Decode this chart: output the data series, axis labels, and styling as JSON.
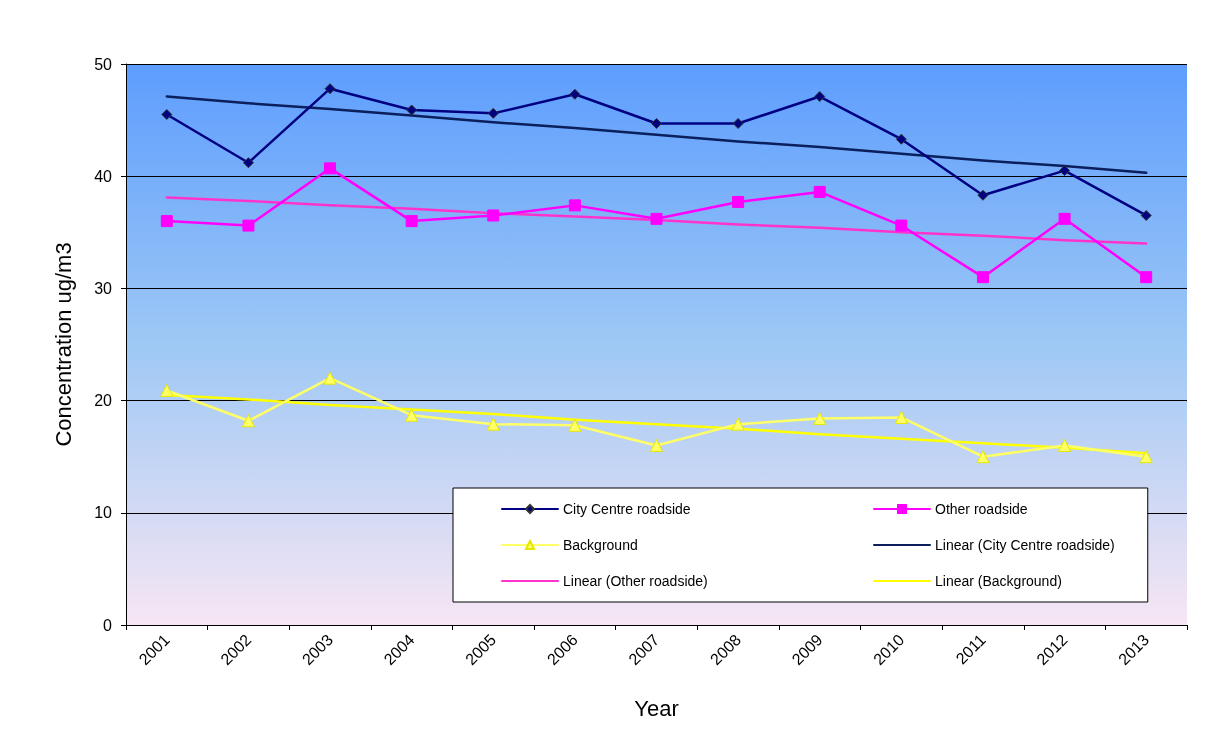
{
  "chart_data": {
    "type": "line",
    "xlabel": "Year",
    "ylabel": "Concentration ug/m3",
    "categories": [
      "2001",
      "2002",
      "2003",
      "2004",
      "2005",
      "2006",
      "2007",
      "2008",
      "2009",
      "2010",
      "2011",
      "2012",
      "2013"
    ],
    "ylim": [
      0,
      50
    ],
    "yticks": [
      0,
      10,
      20,
      30,
      40,
      50
    ],
    "grid": "y",
    "legend": "bottom right",
    "series": [
      {
        "name": "City Centre roadside",
        "color": "#000080",
        "marker": "diamond",
        "values": [
          45.5,
          41.2,
          47.8,
          45.9,
          45.6,
          47.3,
          44.7,
          44.7,
          47.1,
          43.3,
          38.3,
          40.5,
          36.5
        ]
      },
      {
        "name": "Other roadside",
        "color": "#ff00ff",
        "marker": "square",
        "values": [
          36.0,
          35.6,
          40.7,
          36.0,
          36.5,
          37.4,
          36.2,
          37.7,
          38.6,
          35.6,
          31.0,
          36.2,
          31.0
        ]
      },
      {
        "name": "Background",
        "color": "#ffff66",
        "marker": "triangle",
        "values": [
          20.9,
          18.2,
          22.0,
          18.7,
          17.9,
          17.8,
          16.0,
          17.9,
          18.4,
          18.5,
          15.0,
          16.0,
          15.0
        ]
      },
      {
        "name": "Linear (City Centre roadside)",
        "color": "#0a1f5c",
        "marker": "none",
        "values": [
          47.1,
          46.5,
          46.0,
          45.4,
          44.8,
          44.3,
          43.7,
          43.1,
          42.6,
          42.0,
          41.4,
          40.9,
          40.3
        ]
      },
      {
        "name": "Linear (Other roadside)",
        "color": "#ff33cc",
        "marker": "none",
        "values": [
          38.1,
          37.8,
          37.4,
          37.1,
          36.7,
          36.4,
          36.1,
          35.7,
          35.4,
          35.0,
          34.7,
          34.3,
          34.0
        ]
      },
      {
        "name": "Linear (Background)",
        "color": "#ffff00",
        "marker": "none",
        "values": [
          20.5,
          20.1,
          19.6,
          19.2,
          18.8,
          18.3,
          17.9,
          17.5,
          17.0,
          16.6,
          16.2,
          15.8,
          15.3
        ]
      }
    ]
  }
}
